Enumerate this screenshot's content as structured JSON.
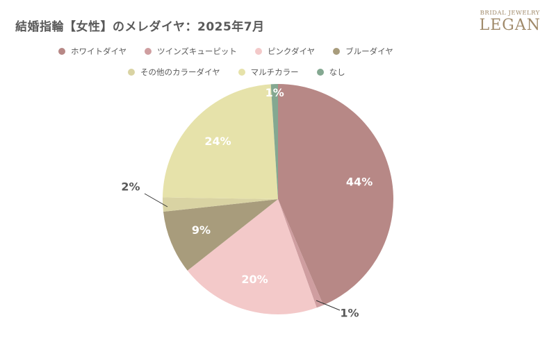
{
  "title": "結婚指輪【女性】のメレダイヤ：2025年7月",
  "brand": {
    "sub": "BRIDAL JEWELRY",
    "name": "LEGAN"
  },
  "chart_data": {
    "type": "pie",
    "title": "結婚指輪【女性】のメレダイヤ：2025年7月",
    "start": "12 o'clock, clockwise",
    "legend_position": "top",
    "slices": [
      {
        "label": "ホワイトダイヤ",
        "value": 44,
        "display": "44%",
        "color": "#b78886"
      },
      {
        "label": "ツインズキューピット",
        "value": 1,
        "display": "1%",
        "color": "#cf9ea0"
      },
      {
        "label": "ピンクダイヤ",
        "value": 20,
        "display": "20%",
        "color": "#f3c9c9"
      },
      {
        "label": "ブルーダイヤ",
        "value": 9,
        "display": "9%",
        "color": "#a89c7c"
      },
      {
        "label": "その他のカラーダイヤ",
        "value": 2,
        "display": "2%",
        "color": "#d9d3a3"
      },
      {
        "label": "マルチカラー",
        "value": 24,
        "display": "24%",
        "color": "#e6e2aa"
      },
      {
        "label": "なし",
        "value": 1,
        "display": "1%",
        "color": "#84a891"
      }
    ]
  }
}
